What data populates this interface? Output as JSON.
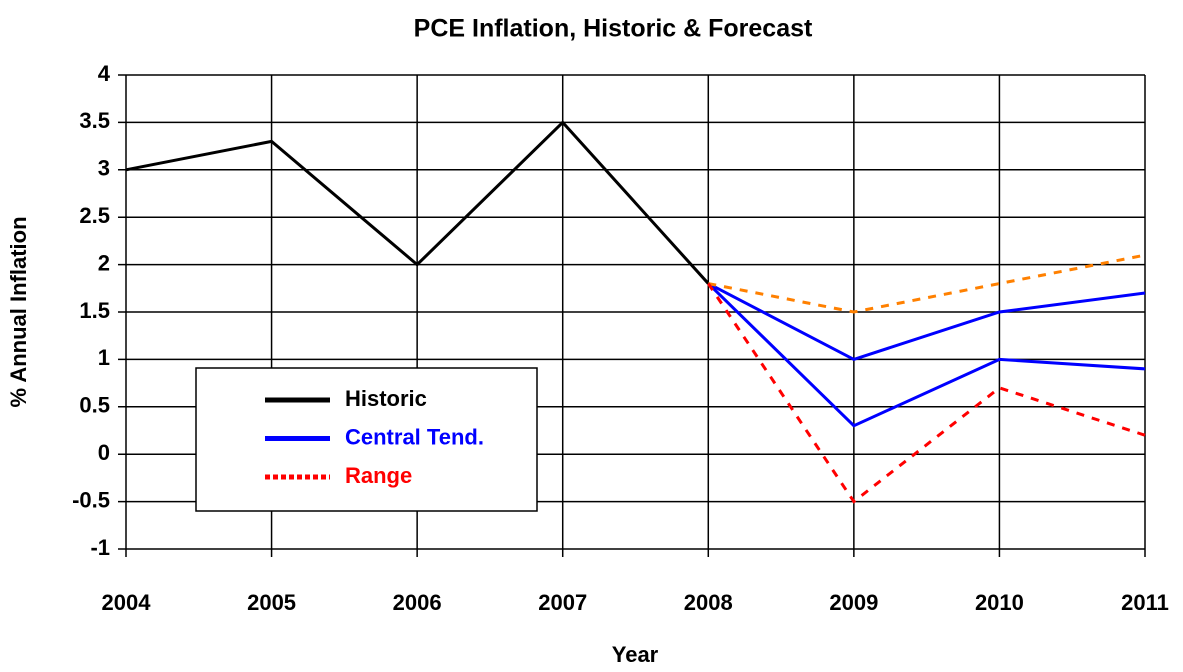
{
  "chart_data": {
    "type": "line",
    "title": "PCE Inflation, Historic & Forecast",
    "x_label": "Year",
    "y_label": "% Annual Inflation",
    "x": [
      2004,
      2005,
      2006,
      2007,
      2008,
      2009,
      2010,
      2011
    ],
    "xlim": [
      2004,
      2011
    ],
    "xticks": [
      2004,
      2005,
      2006,
      2007,
      2008,
      2009,
      2010,
      2011
    ],
    "ylim": [
      -1,
      4
    ],
    "yticks": [
      -1,
      -0.5,
      0,
      0.5,
      1,
      1.5,
      2,
      2.5,
      3,
      3.5,
      4
    ],
    "grid": true,
    "series": [
      {
        "name": "Historic",
        "color": "#000000",
        "dashed": false,
        "values": [
          3,
          3.3,
          2,
          3.5,
          1.8,
          null,
          null,
          null
        ]
      },
      {
        "name": "Central Tend.",
        "color": "#0000ff",
        "dashed": false,
        "values": [
          null,
          null,
          null,
          null,
          1.8,
          1.0,
          1.5,
          1.7
        ],
        "color2": "#0000ff",
        "values2": [
          null,
          null,
          null,
          null,
          1.8,
          0.3,
          1.0,
          0.9
        ]
      },
      {
        "name": "Range",
        "color": "#ff0000",
        "dashed": true,
        "values": [
          null,
          null,
          null,
          null,
          1.8,
          -0.5,
          0.7,
          0.2
        ],
        "color2": "#ff8000",
        "values2": [
          null,
          null,
          null,
          null,
          1.8,
          1.5,
          1.8,
          2.1
        ]
      }
    ]
  }
}
